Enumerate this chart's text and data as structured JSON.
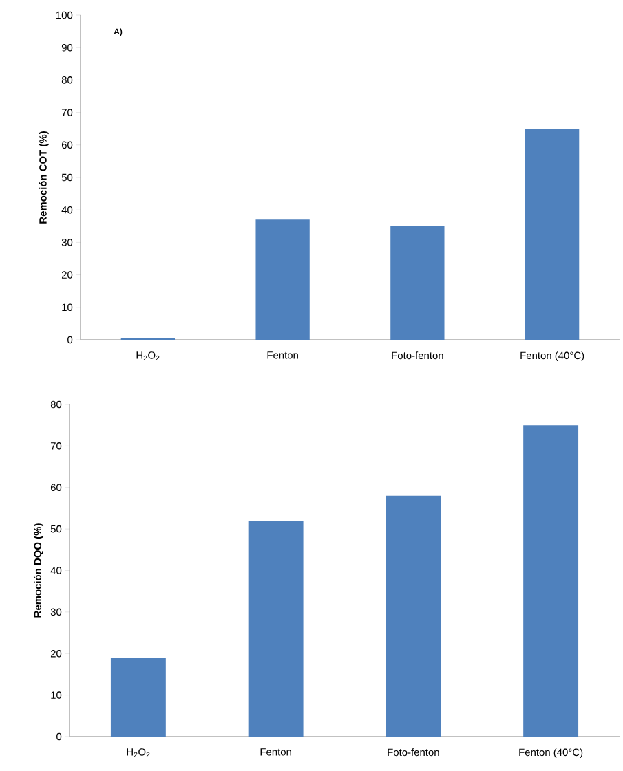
{
  "chart_data": [
    {
      "type": "bar",
      "annotations": [
        "A)"
      ],
      "ylabel": "Remoción COT (%)",
      "categories": [
        "H$_{2}$O$_{2}$",
        "Fenton",
        "Foto-fenton",
        "Fenton (40°C)"
      ],
      "values": [
        0.6,
        37,
        35,
        65
      ],
      "color": "#4f81bd",
      "ylim": [
        0,
        100
      ],
      "yticks": [
        0,
        10,
        20,
        30,
        40,
        50,
        60,
        70,
        80,
        90,
        100
      ]
    },
    {
      "type": "bar",
      "ylabel": "Remoción DQO (%)",
      "categories": [
        "H$_{2}$O$_{2}$",
        "Fenton",
        "Foto-fenton",
        "Fenton (40°C)"
      ],
      "values": [
        19,
        52,
        58,
        75
      ],
      "color": "#4f81bd",
      "ylim": [
        0,
        80
      ],
      "yticks": [
        0,
        10,
        20,
        30,
        40,
        50,
        60,
        70,
        80
      ]
    }
  ]
}
